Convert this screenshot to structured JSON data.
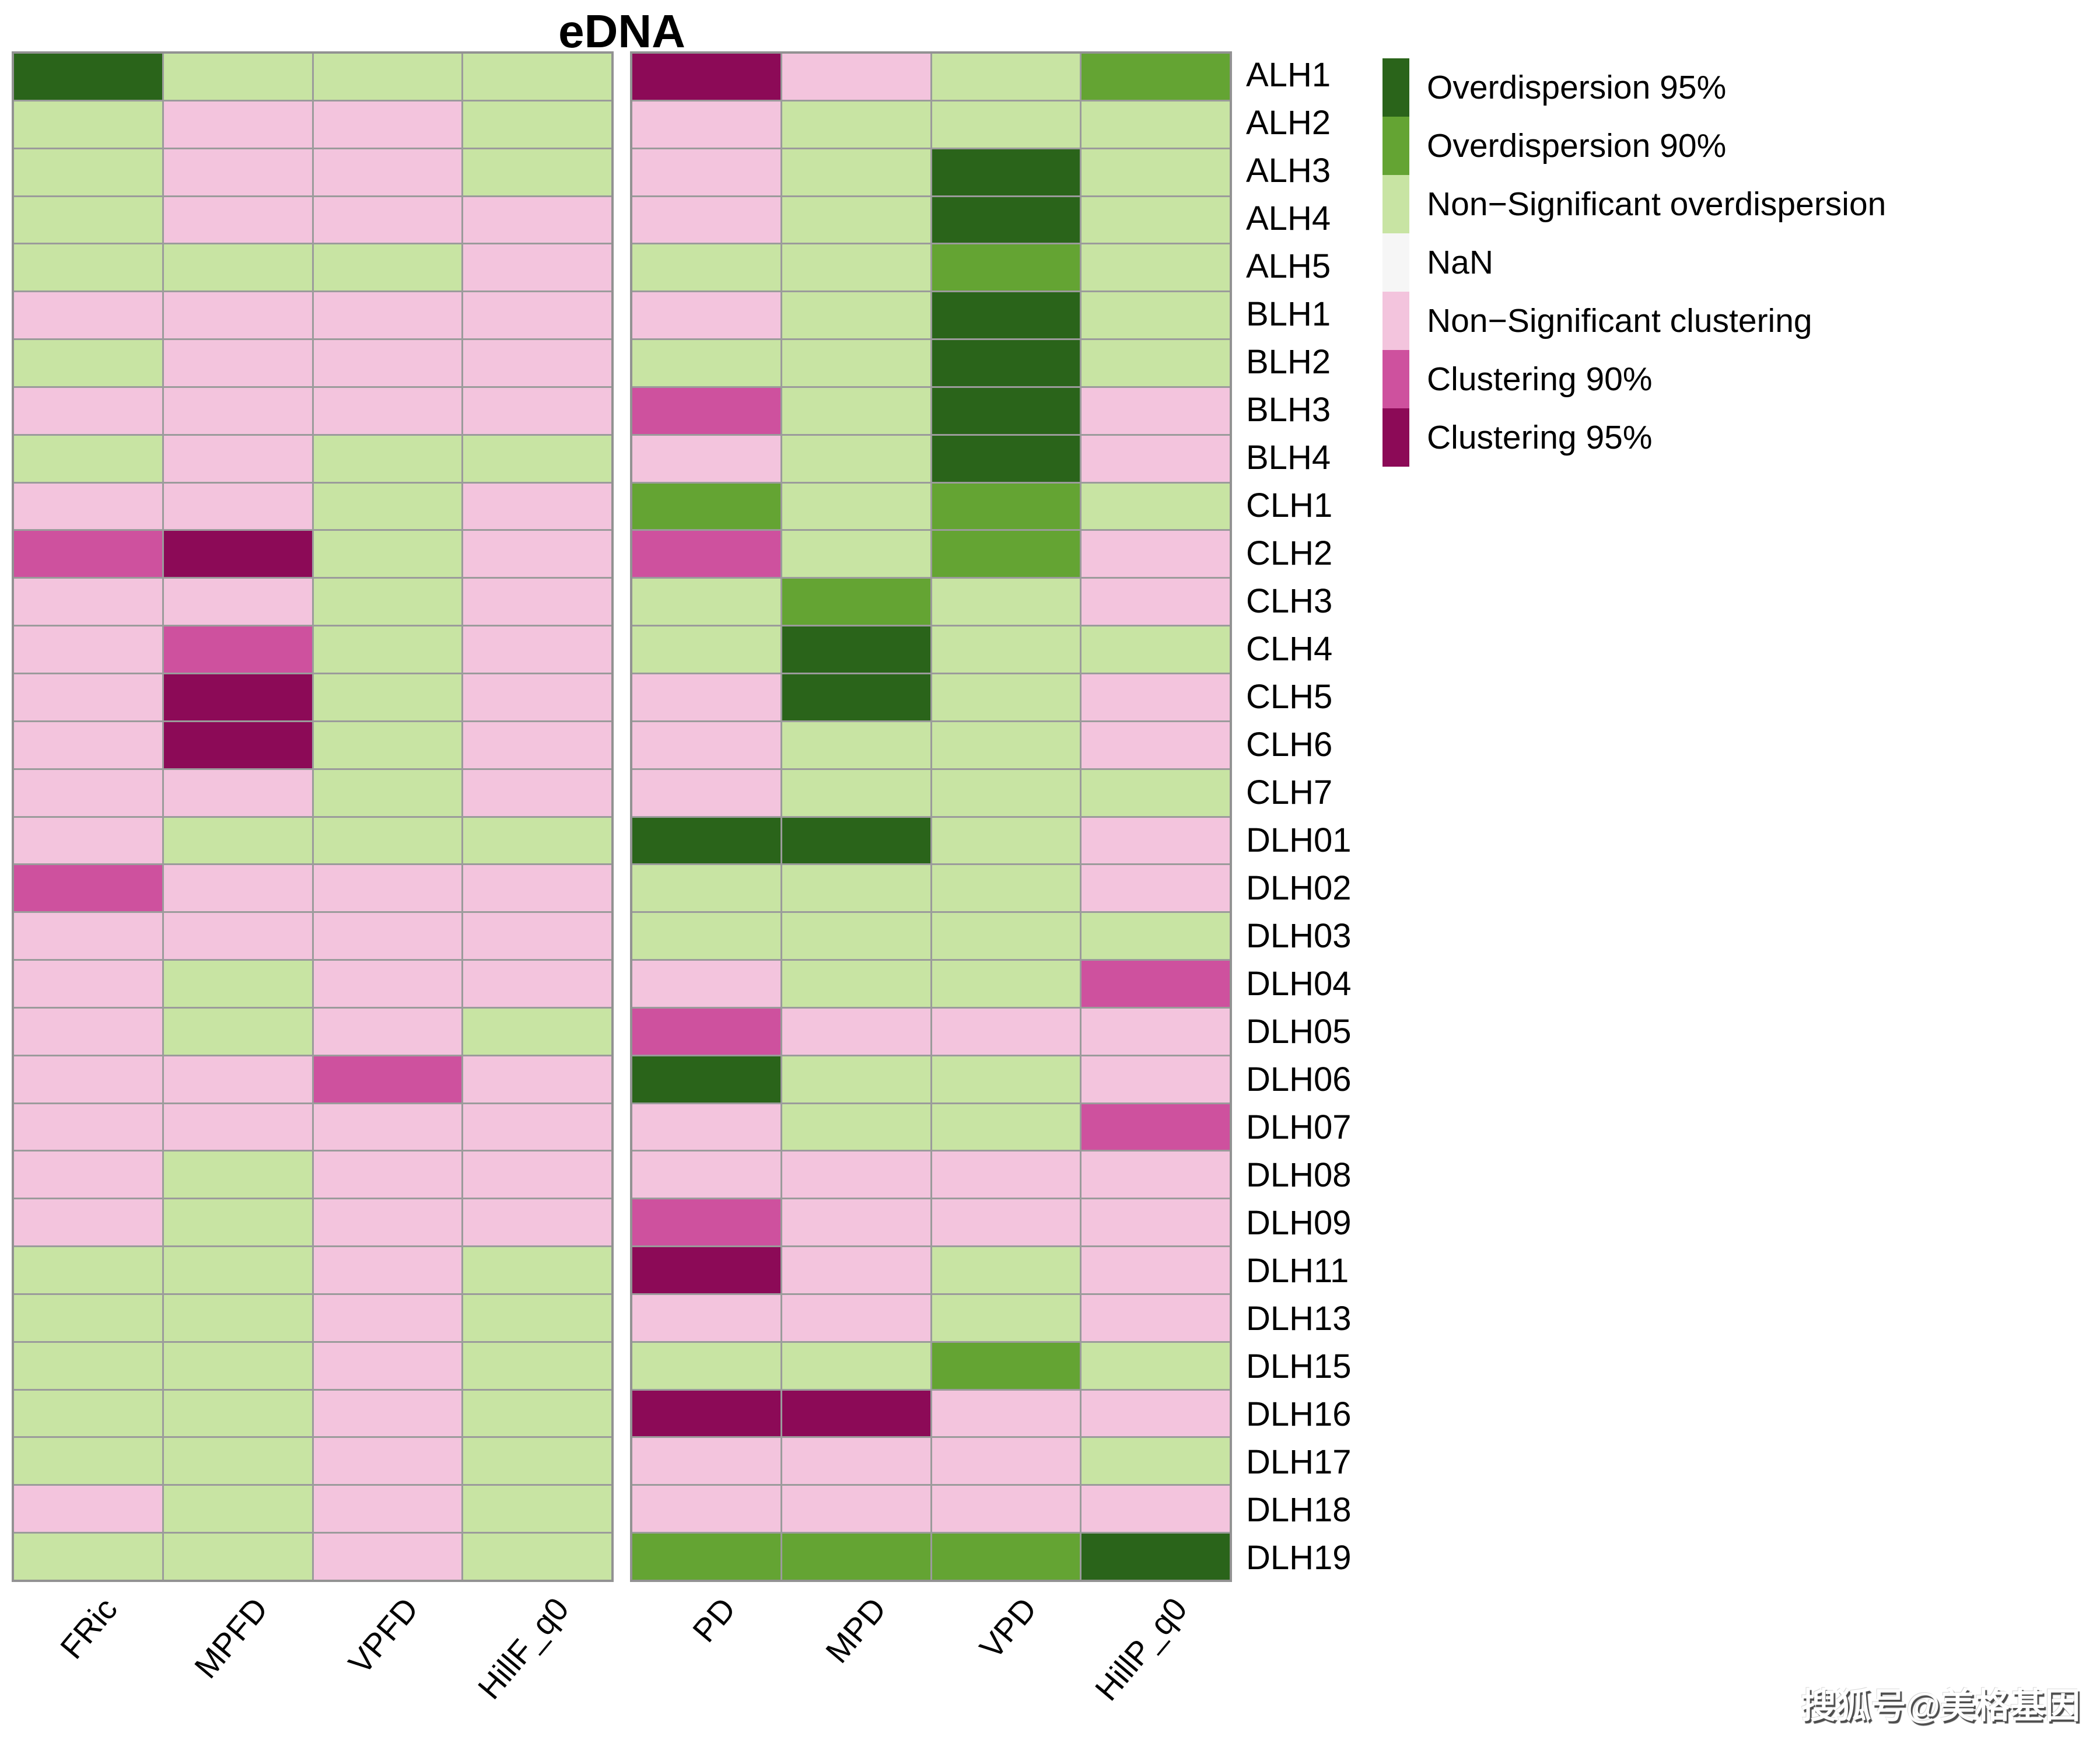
{
  "title": "eDNA",
  "watermark": "搜狐号@美格基因",
  "colors": {
    "O95": "#2a641a",
    "O90": "#64a433",
    "NSO": "#c8e4a3",
    "NaN": "#f6f6f6",
    "NSC": "#f3c4dd",
    "C90": "#ce519e",
    "C95": "#8c0a57",
    "grid": "#9b9b9b"
  },
  "legend": {
    "items": [
      {
        "code": "O95",
        "label": "Overdispersion 95%"
      },
      {
        "code": "O90",
        "label": "Overdispersion 90%"
      },
      {
        "code": "NSO",
        "label": "Non−Significant overdispersion"
      },
      {
        "code": "NaN",
        "label": "NaN"
      },
      {
        "code": "NSC",
        "label": "Non−Significant clustering"
      },
      {
        "code": "C90",
        "label": "Clustering 90%"
      },
      {
        "code": "C95",
        "label": "Clustering 95%"
      }
    ]
  },
  "chart_data": {
    "type": "heatmap",
    "title": "eDNA",
    "panels": [
      {
        "name": "left",
        "columns": [
          "FRic",
          "MPFD",
          "VPFD",
          "HillF_q0"
        ]
      },
      {
        "name": "right",
        "columns": [
          "PD",
          "MPD",
          "VPD",
          "HillP_q0"
        ]
      }
    ],
    "rows": [
      "ALH1",
      "ALH2",
      "ALH3",
      "ALH4",
      "ALH5",
      "BLH1",
      "BLH2",
      "BLH3",
      "BLH4",
      "CLH1",
      "CLH2",
      "CLH3",
      "CLH4",
      "CLH5",
      "CLH6",
      "CLH7",
      "DLH01",
      "DLH02",
      "DLH03",
      "DLH04",
      "DLH05",
      "DLH06",
      "DLH07",
      "DLH08",
      "DLH09",
      "DLH11",
      "DLH13",
      "DLH15",
      "DLH16",
      "DLH17",
      "DLH18",
      "DLH19"
    ],
    "value_legend": {
      "O95": "Overdispersion 95%",
      "O90": "Overdispersion 90%",
      "NSO": "Non−Significant overdispersion",
      "NaN": "NaN",
      "NSC": "Non−Significant clustering",
      "C90": "Clustering 90%",
      "C95": "Clustering 95%"
    },
    "values": {
      "ALH1": [
        "O95",
        "NSO",
        "NSO",
        "NSO",
        "C95",
        "NSC",
        "NSO",
        "O90"
      ],
      "ALH2": [
        "NSO",
        "NSC",
        "NSC",
        "NSO",
        "NSC",
        "NSO",
        "NSO",
        "NSO"
      ],
      "ALH3": [
        "NSO",
        "NSC",
        "NSC",
        "NSO",
        "NSC",
        "NSO",
        "O95",
        "NSO"
      ],
      "ALH4": [
        "NSO",
        "NSC",
        "NSC",
        "NSC",
        "NSC",
        "NSO",
        "O95",
        "NSO"
      ],
      "ALH5": [
        "NSO",
        "NSO",
        "NSO",
        "NSC",
        "NSO",
        "NSO",
        "O90",
        "NSO"
      ],
      "BLH1": [
        "NSC",
        "NSC",
        "NSC",
        "NSC",
        "NSC",
        "NSO",
        "O95",
        "NSO"
      ],
      "BLH2": [
        "NSO",
        "NSC",
        "NSC",
        "NSC",
        "NSO",
        "NSO",
        "O95",
        "NSO"
      ],
      "BLH3": [
        "NSC",
        "NSC",
        "NSC",
        "NSC",
        "C90",
        "NSO",
        "O95",
        "NSC"
      ],
      "BLH4": [
        "NSO",
        "NSC",
        "NSO",
        "NSO",
        "NSC",
        "NSO",
        "O95",
        "NSC"
      ],
      "CLH1": [
        "NSC",
        "NSC",
        "NSO",
        "NSC",
        "O90",
        "NSO",
        "O90",
        "NSO"
      ],
      "CLH2": [
        "C90",
        "C95",
        "NSO",
        "NSC",
        "C90",
        "NSO",
        "O90",
        "NSC"
      ],
      "CLH3": [
        "NSC",
        "NSC",
        "NSO",
        "NSC",
        "NSO",
        "O90",
        "NSO",
        "NSC"
      ],
      "CLH4": [
        "NSC",
        "C90",
        "NSO",
        "NSC",
        "NSO",
        "O95",
        "NSO",
        "NSO"
      ],
      "CLH5": [
        "NSC",
        "C95",
        "NSO",
        "NSC",
        "NSC",
        "O95",
        "NSO",
        "NSC"
      ],
      "CLH6": [
        "NSC",
        "C95",
        "NSO",
        "NSC",
        "NSC",
        "NSO",
        "NSO",
        "NSC"
      ],
      "CLH7": [
        "NSC",
        "NSC",
        "NSO",
        "NSC",
        "NSC",
        "NSO",
        "NSO",
        "NSO"
      ],
      "DLH01": [
        "NSC",
        "NSO",
        "NSO",
        "NSO",
        "O95",
        "O95",
        "NSO",
        "NSC"
      ],
      "DLH02": [
        "C90",
        "NSC",
        "NSC",
        "NSC",
        "NSO",
        "NSO",
        "NSO",
        "NSC"
      ],
      "DLH03": [
        "NSC",
        "NSC",
        "NSC",
        "NSC",
        "NSO",
        "NSO",
        "NSO",
        "NSO"
      ],
      "DLH04": [
        "NSC",
        "NSO",
        "NSC",
        "NSC",
        "NSC",
        "NSO",
        "NSO",
        "C90"
      ],
      "DLH05": [
        "NSC",
        "NSO",
        "NSC",
        "NSO",
        "C90",
        "NSC",
        "NSC",
        "NSC"
      ],
      "DLH06": [
        "NSC",
        "NSC",
        "C90",
        "NSC",
        "O95",
        "NSO",
        "NSO",
        "NSC"
      ],
      "DLH07": [
        "NSC",
        "NSC",
        "NSC",
        "NSC",
        "NSC",
        "NSO",
        "NSO",
        "C90"
      ],
      "DLH08": [
        "NSC",
        "NSO",
        "NSC",
        "NSC",
        "NSC",
        "NSC",
        "NSC",
        "NSC"
      ],
      "DLH09": [
        "NSC",
        "NSO",
        "NSC",
        "NSC",
        "C90",
        "NSC",
        "NSC",
        "NSC"
      ],
      "DLH11": [
        "NSO",
        "NSO",
        "NSC",
        "NSO",
        "C95",
        "NSC",
        "NSO",
        "NSC"
      ],
      "DLH13": [
        "NSO",
        "NSO",
        "NSC",
        "NSO",
        "NSC",
        "NSC",
        "NSO",
        "NSC"
      ],
      "DLH15": [
        "NSO",
        "NSO",
        "NSC",
        "NSO",
        "NSO",
        "NSO",
        "O90",
        "NSO"
      ],
      "DLH16": [
        "NSO",
        "NSO",
        "NSC",
        "NSO",
        "C95",
        "C95",
        "NSC",
        "NSC"
      ],
      "DLH17": [
        "NSO",
        "NSO",
        "NSC",
        "NSO",
        "NSC",
        "NSC",
        "NSC",
        "NSO"
      ],
      "DLH18": [
        "NSC",
        "NSO",
        "NSC",
        "NSO",
        "NSC",
        "NSC",
        "NSC",
        "NSC"
      ],
      "DLH19": [
        "NSO",
        "NSO",
        "NSC",
        "NSO",
        "O90",
        "O90",
        "O90",
        "O95"
      ]
    }
  }
}
